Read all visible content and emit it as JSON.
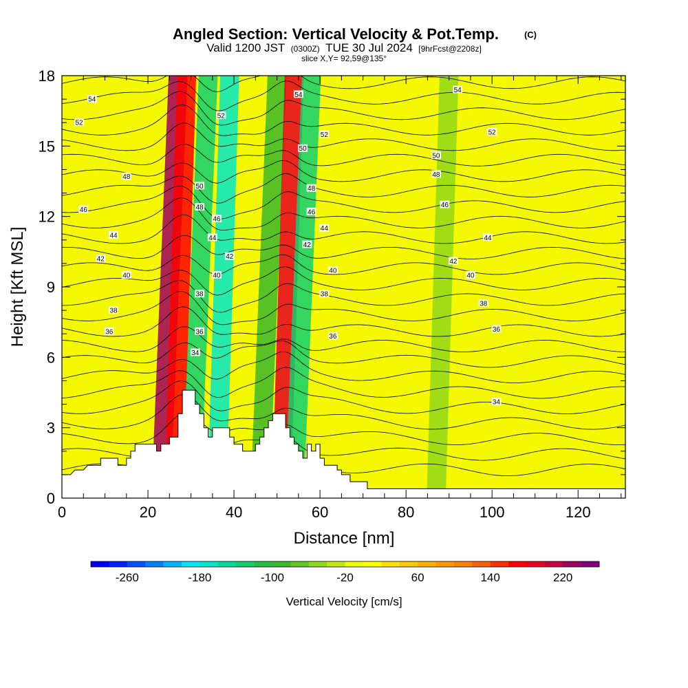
{
  "chart_data": {
    "type": "heatmap",
    "title": "Angled Section: Vertical Velocity & Pot.Temp.",
    "title_mark": "(C)",
    "subtitle_parts": [
      "Valid 1200 JST",
      "(0300Z)",
      "TUE 30 Jul 2024",
      "[9hrFcst@2208z]"
    ],
    "slice_text": "slice X,Y= 92,59@135°",
    "xlabel": "Distance [nm]",
    "ylabel": "Height [Kft MSL]",
    "xlim": [
      0,
      131
    ],
    "ylim": [
      0,
      18
    ],
    "x_ticks": [
      0,
      20,
      40,
      60,
      80,
      100,
      120
    ],
    "y_ticks": [
      0,
      3,
      6,
      9,
      12,
      15,
      18
    ],
    "colorbar": {
      "label": "Vertical Velocity [cm/s]",
      "min": -300,
      "max": 260,
      "step": 20,
      "tick_values": [
        -260,
        -180,
        -100,
        -20,
        60,
        140,
        220
      ],
      "colors": [
        "#0000ff",
        "#0022ff",
        "#0050ff",
        "#0080ff",
        "#00b4ff",
        "#00e4ff",
        "#00e8c8",
        "#00dc96",
        "#10d070",
        "#20c040",
        "#3cb82a",
        "#60c820",
        "#90d818",
        "#c0e810",
        "#f0ff00",
        "#ffff00",
        "#ffe000",
        "#ffc800",
        "#ffb000",
        "#ff9800",
        "#ff8000",
        "#ff6000",
        "#ff3000",
        "#ff0000",
        "#e80020",
        "#c80040",
        "#a00060",
        "#800080"
      ]
    },
    "shading_bands": [
      {
        "x": 23,
        "value": 220
      },
      {
        "x": 26,
        "value": 170
      },
      {
        "x": 30,
        "value": -140
      },
      {
        "x": 36,
        "value": -170
      },
      {
        "x": 46,
        "value": -90
      },
      {
        "x": 51,
        "value": 180
      },
      {
        "x": 54,
        "value": -130
      },
      {
        "x": 87,
        "value": -60
      }
    ],
    "terrain": [
      [
        0,
        1.0
      ],
      [
        2,
        1.0
      ],
      [
        3,
        1.2
      ],
      [
        5,
        1.2
      ],
      [
        6,
        1.4
      ],
      [
        9,
        1.4
      ],
      [
        9,
        1.7
      ],
      [
        13,
        1.7
      ],
      [
        13,
        1.4
      ],
      [
        15,
        1.4
      ],
      [
        15,
        1.7
      ],
      [
        16,
        1.7
      ],
      [
        16,
        2.0
      ],
      [
        17,
        2.0
      ],
      [
        17,
        2.3
      ],
      [
        19,
        2.3
      ],
      [
        20,
        2.3
      ],
      [
        21,
        2.3
      ],
      [
        22,
        2.3
      ],
      [
        22,
        2.0
      ],
      [
        23,
        2.0
      ],
      [
        23,
        2.3
      ],
      [
        25,
        2.3
      ],
      [
        25,
        2.6
      ],
      [
        27,
        2.6
      ],
      [
        27,
        3.6
      ],
      [
        28,
        3.6
      ],
      [
        28,
        4.6
      ],
      [
        31,
        4.6
      ],
      [
        31,
        4.0
      ],
      [
        32,
        4.0
      ],
      [
        32,
        3.6
      ],
      [
        33,
        3.6
      ],
      [
        33,
        3.0
      ],
      [
        34,
        3.0
      ],
      [
        34,
        2.6
      ],
      [
        35,
        2.6
      ],
      [
        35,
        3.0
      ],
      [
        39,
        3.0
      ],
      [
        39,
        2.6
      ],
      [
        40,
        2.6
      ],
      [
        40,
        2.3
      ],
      [
        42,
        2.3
      ],
      [
        42,
        2.0
      ],
      [
        45,
        2.0
      ],
      [
        45,
        2.3
      ],
      [
        46,
        2.3
      ],
      [
        46,
        2.6
      ],
      [
        47,
        2.6
      ],
      [
        47,
        3.0
      ],
      [
        48,
        3.0
      ],
      [
        48,
        3.3
      ],
      [
        49,
        3.3
      ],
      [
        49,
        3.6
      ],
      [
        52,
        3.6
      ],
      [
        52,
        3.0
      ],
      [
        53,
        3.0
      ],
      [
        53,
        2.6
      ],
      [
        54,
        2.6
      ],
      [
        54,
        2.3
      ],
      [
        55,
        2.3
      ],
      [
        55,
        2.0
      ],
      [
        56,
        2.0
      ],
      [
        56,
        1.7
      ],
      [
        57,
        1.7
      ],
      [
        57,
        2.3
      ],
      [
        58,
        2.3
      ],
      [
        58,
        2.0
      ],
      [
        59,
        2.0
      ],
      [
        59,
        2.3
      ],
      [
        60,
        2.3
      ],
      [
        60,
        1.7
      ],
      [
        61,
        1.7
      ],
      [
        61,
        1.4
      ],
      [
        64,
        1.4
      ],
      [
        64,
        1.2
      ],
      [
        65,
        1.2
      ],
      [
        65,
        1.0
      ],
      [
        67,
        1.0
      ],
      [
        67,
        0.7
      ],
      [
        71,
        0.7
      ],
      [
        71,
        0.4
      ],
      [
        131,
        0.4
      ]
    ],
    "contour_labels": [
      {
        "x": 7,
        "y": 17.0,
        "text": "54"
      },
      {
        "x": 4,
        "y": 16.0,
        "text": "52"
      },
      {
        "x": 15,
        "y": 13.7,
        "text": "48"
      },
      {
        "x": 5,
        "y": 12.3,
        "text": "46"
      },
      {
        "x": 12,
        "y": 11.2,
        "text": "44"
      },
      {
        "x": 9,
        "y": 10.2,
        "text": "42"
      },
      {
        "x": 15,
        "y": 9.5,
        "text": "40"
      },
      {
        "x": 12,
        "y": 8.0,
        "text": "38"
      },
      {
        "x": 11,
        "y": 7.1,
        "text": "36"
      },
      {
        "x": 31,
        "y": 6.2,
        "text": "34"
      },
      {
        "x": 32,
        "y": 7.1,
        "text": "36"
      },
      {
        "x": 32,
        "y": 8.7,
        "text": "38"
      },
      {
        "x": 36,
        "y": 9.5,
        "text": "40"
      },
      {
        "x": 39,
        "y": 10.3,
        "text": "42"
      },
      {
        "x": 35,
        "y": 11.1,
        "text": "44"
      },
      {
        "x": 36,
        "y": 11.9,
        "text": "46"
      },
      {
        "x": 32,
        "y": 12.4,
        "text": "48"
      },
      {
        "x": 32,
        "y": 13.3,
        "text": "50"
      },
      {
        "x": 37,
        "y": 16.3,
        "text": "52"
      },
      {
        "x": 55,
        "y": 17.2,
        "text": "54"
      },
      {
        "x": 56,
        "y": 14.9,
        "text": "50"
      },
      {
        "x": 58,
        "y": 13.2,
        "text": "48"
      },
      {
        "x": 58,
        "y": 12.2,
        "text": "46"
      },
      {
        "x": 61,
        "y": 11.5,
        "text": "44"
      },
      {
        "x": 57,
        "y": 10.8,
        "text": "42"
      },
      {
        "x": 63,
        "y": 9.7,
        "text": "40"
      },
      {
        "x": 61,
        "y": 8.7,
        "text": "38"
      },
      {
        "x": 63,
        "y": 6.9,
        "text": "36"
      },
      {
        "x": 61,
        "y": 15.5,
        "text": "52"
      },
      {
        "x": 92,
        "y": 17.4,
        "text": "54"
      },
      {
        "x": 100,
        "y": 15.6,
        "text": "52"
      },
      {
        "x": 87,
        "y": 14.6,
        "text": "50"
      },
      {
        "x": 87,
        "y": 13.8,
        "text": "48"
      },
      {
        "x": 89,
        "y": 12.5,
        "text": "46"
      },
      {
        "x": 99,
        "y": 11.1,
        "text": "44"
      },
      {
        "x": 91,
        "y": 10.1,
        "text": "42"
      },
      {
        "x": 95,
        "y": 9.5,
        "text": "40"
      },
      {
        "x": 98,
        "y": 8.3,
        "text": "38"
      },
      {
        "x": 101,
        "y": 7.2,
        "text": "36"
      },
      {
        "x": 101,
        "y": 4.1,
        "text": "34"
      }
    ]
  }
}
